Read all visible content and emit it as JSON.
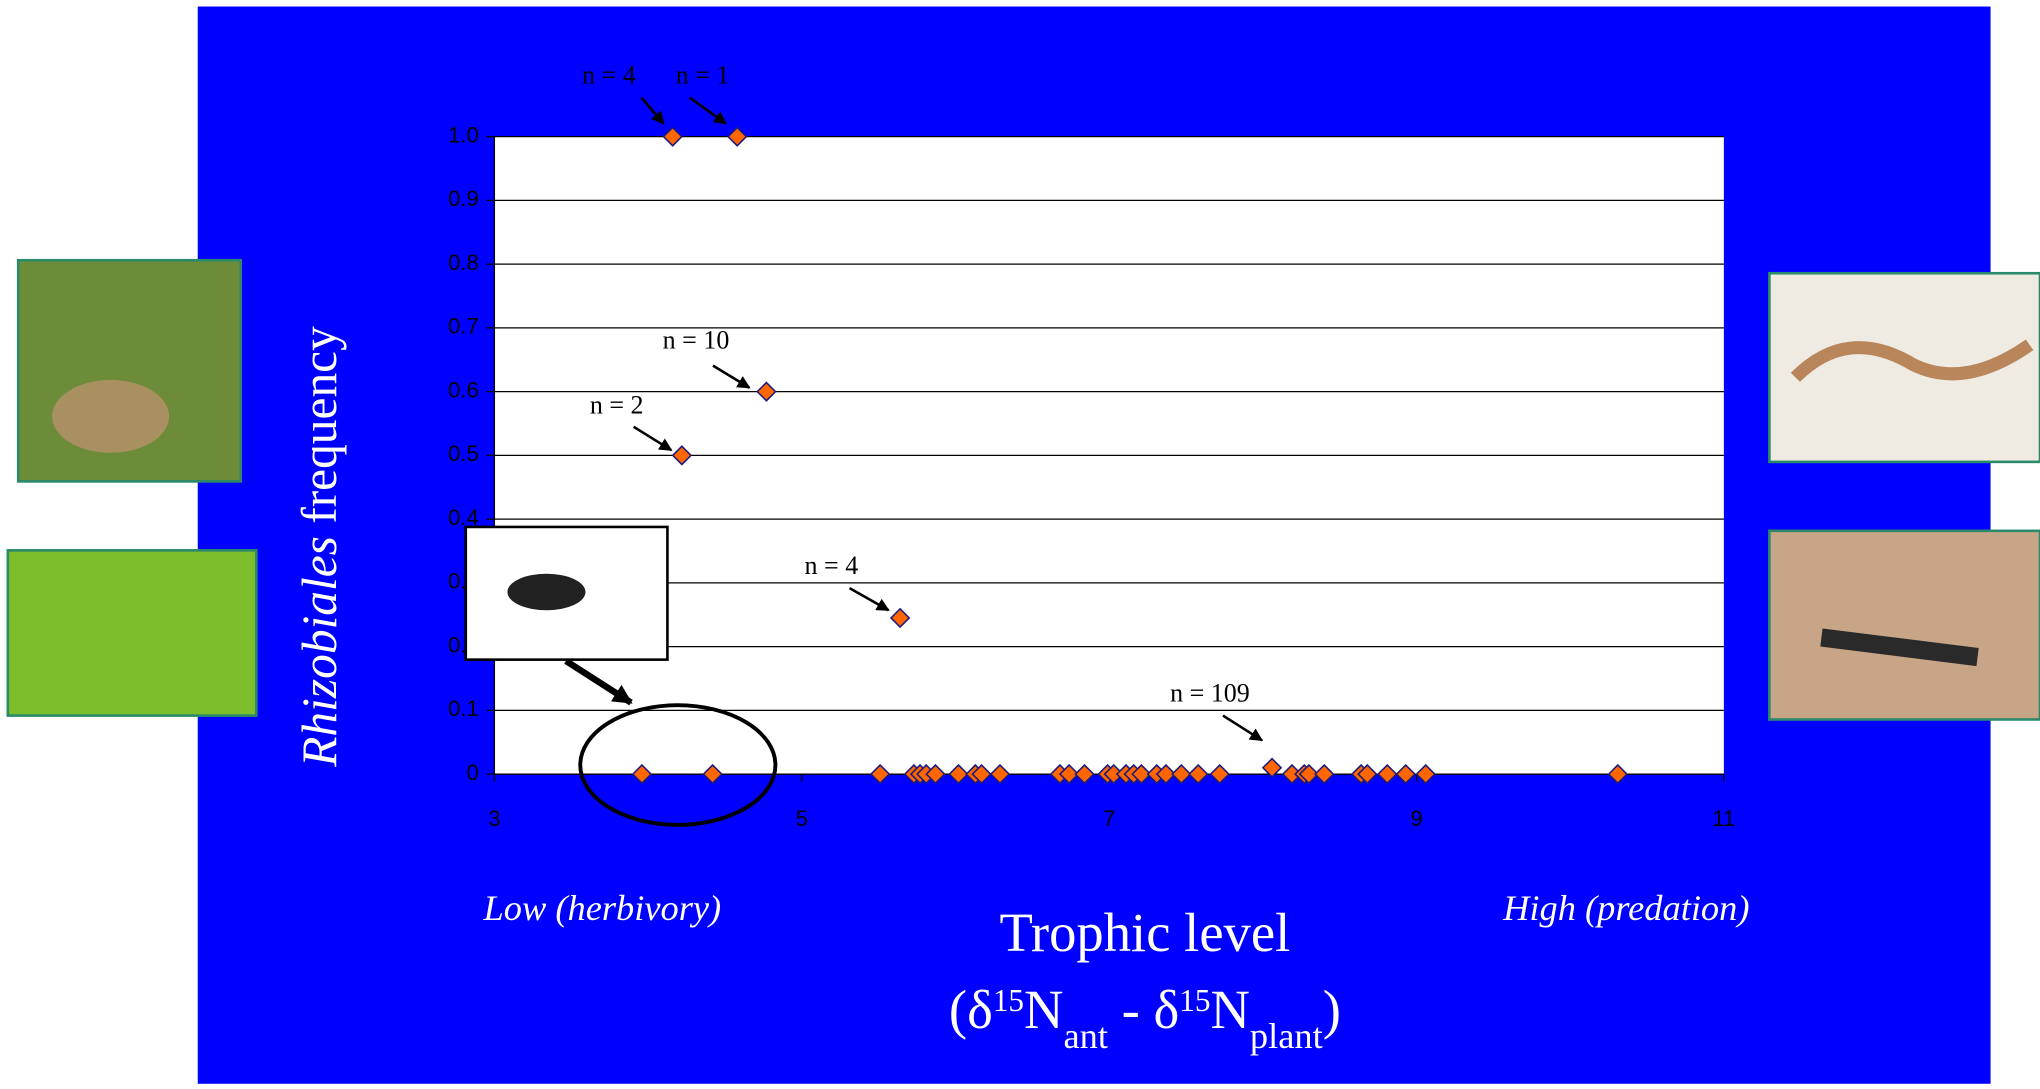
{
  "chart_data": {
    "type": "scatter",
    "x": [
      4.16,
      4.58,
      4.77,
      4.22,
      5.64,
      8.06,
      3.96,
      4.42,
      5.51,
      5.73,
      5.77,
      5.81,
      5.87,
      6.02,
      6.13,
      6.17,
      6.29,
      6.68,
      6.74,
      6.84,
      6.99,
      7.03,
      7.11,
      7.16,
      7.21,
      7.31,
      7.37,
      7.47,
      7.58,
      7.72,
      8.19,
      8.27,
      8.3,
      8.4,
      8.64,
      8.68,
      8.81,
      8.93,
      9.06,
      10.31
    ],
    "values": [
      1.0,
      1.0,
      0.6,
      0.5,
      0.245,
      0.01,
      0,
      0,
      0,
      0,
      0,
      0,
      0,
      0,
      0,
      0,
      0,
      0,
      0,
      0,
      0,
      0,
      0,
      0,
      0,
      0,
      0,
      0,
      0,
      0,
      0,
      0,
      0,
      0,
      0,
      0,
      0,
      0,
      0,
      0
    ],
    "color": "#ff6600",
    "xlim": [
      3,
      11
    ],
    "ylim": [
      0,
      1
    ],
    "xticks": [
      3,
      5,
      7,
      9,
      11
    ],
    "yticks": [
      0,
      0.1,
      0.2,
      0.3,
      0.4,
      0.5,
      0.6,
      0.7,
      0.8,
      0.9,
      {
        "value": 1,
        "label": "1.0"
      }
    ],
    "grid": true,
    "y_label": [
      "Rhizobiales",
      " frequency"
    ],
    "x_label": "Trophic level",
    "x_label_formula": [
      {
        "text": "(δ"
      },
      {
        "text": "15",
        "style": "sup"
      },
      {
        "text": "N"
      },
      {
        "text": "ant",
        "style": "sub"
      },
      {
        "text": " - δ"
      },
      {
        "text": "15",
        "style": "sup"
      },
      {
        "text": "N"
      },
      {
        "text": "plant",
        "style": "sub"
      },
      {
        "text": ")"
      }
    ],
    "x_low_label": "Low (herbivory)",
    "x_high_label": "High (predation)",
    "annotations": [
      "n = 4",
      "n = 1",
      "n = 10",
      "n = 2",
      "n = 4",
      "n = 109"
    ]
  }
}
